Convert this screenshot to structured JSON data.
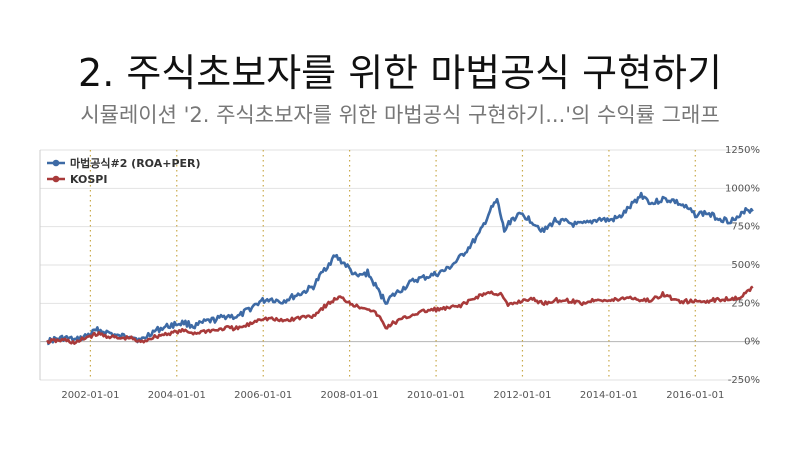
{
  "title": "2. 주식초보자를 위한 마법공식 구현하기",
  "subtitle": "시뮬레이션 '2. 주식초보자를 위한 마법공식 구현하기...'의 수익률 그래프",
  "chart_data": {
    "type": "line",
    "title": "",
    "xlabel": "",
    "ylabel": "",
    "x_ticks": [
      "2002-01-01",
      "2004-01-01",
      "2006-01-01",
      "2008-01-01",
      "2010-01-01",
      "2012-01-01",
      "2014-01-01",
      "2016-01-01"
    ],
    "y_ticks": [
      "-250%",
      "0%",
      "250%",
      "500%",
      "750%",
      "1000%",
      "1250%"
    ],
    "ylim": [
      -250,
      1250
    ],
    "xlim": [
      "2000-11-01",
      "2017-07-01"
    ],
    "y_axis_position": "right",
    "grid": true,
    "legend_position": "top-left",
    "series": [
      {
        "name": "마법공식#2 (ROA+PER)",
        "color": "#3d6aa5",
        "points": [
          [
            "2001-01-01",
            0
          ],
          [
            "2001-03-01",
            15
          ],
          [
            "2001-06-01",
            25
          ],
          [
            "2001-09-01",
            8
          ],
          [
            "2001-12-01",
            40
          ],
          [
            "2002-03-01",
            75
          ],
          [
            "2002-06-01",
            60
          ],
          [
            "2002-09-01",
            30
          ],
          [
            "2002-12-01",
            45
          ],
          [
            "2003-03-01",
            5
          ],
          [
            "2003-06-01",
            60
          ],
          [
            "2003-09-01",
            90
          ],
          [
            "2003-12-01",
            110
          ],
          [
            "2004-03-01",
            125
          ],
          [
            "2004-06-01",
            100
          ],
          [
            "2004-09-01",
            130
          ],
          [
            "2004-12-01",
            145
          ],
          [
            "2005-03-01",
            170
          ],
          [
            "2005-06-01",
            160
          ],
          [
            "2005-09-01",
            210
          ],
          [
            "2005-12-01",
            260
          ],
          [
            "2006-03-01",
            280
          ],
          [
            "2006-06-01",
            260
          ],
          [
            "2006-09-01",
            290
          ],
          [
            "2006-12-01",
            320
          ],
          [
            "2007-03-01",
            360
          ],
          [
            "2007-06-01",
            470
          ],
          [
            "2007-09-01",
            560
          ],
          [
            "2007-12-01",
            500
          ],
          [
            "2008-03-01",
            420
          ],
          [
            "2008-06-01",
            450
          ],
          [
            "2008-09-01",
            330
          ],
          [
            "2008-11-01",
            260
          ],
          [
            "2009-01-01",
            300
          ],
          [
            "2009-04-01",
            350
          ],
          [
            "2009-07-01",
            400
          ],
          [
            "2009-10-01",
            420
          ],
          [
            "2010-01-01",
            440
          ],
          [
            "2010-04-01",
            470
          ],
          [
            "2010-07-01",
            530
          ],
          [
            "2010-10-01",
            610
          ],
          [
            "2011-01-01",
            700
          ],
          [
            "2011-04-01",
            850
          ],
          [
            "2011-06-01",
            920
          ],
          [
            "2011-08-01",
            720
          ],
          [
            "2011-10-01",
            800
          ],
          [
            "2012-01-01",
            830
          ],
          [
            "2012-04-01",
            780
          ],
          [
            "2012-07-01",
            720
          ],
          [
            "2012-10-01",
            790
          ],
          [
            "2013-01-01",
            780
          ],
          [
            "2013-04-01",
            760
          ],
          [
            "2013-07-01",
            770
          ],
          [
            "2013-10-01",
            800
          ],
          [
            "2014-01-01",
            790
          ],
          [
            "2014-04-01",
            810
          ],
          [
            "2014-07-01",
            880
          ],
          [
            "2014-10-01",
            960
          ],
          [
            "2015-01-01",
            900
          ],
          [
            "2015-04-01",
            930
          ],
          [
            "2015-07-01",
            920
          ],
          [
            "2015-10-01",
            880
          ],
          [
            "2016-01-01",
            830
          ],
          [
            "2016-04-01",
            840
          ],
          [
            "2016-07-01",
            810
          ],
          [
            "2016-10-01",
            790
          ],
          [
            "2017-01-01",
            800
          ],
          [
            "2017-03-01",
            870
          ],
          [
            "2017-05-01",
            850
          ]
        ]
      },
      {
        "name": "KOSPI",
        "color": "#a83a3a",
        "points": [
          [
            "2001-01-01",
            0
          ],
          [
            "2001-03-01",
            5
          ],
          [
            "2001-06-01",
            10
          ],
          [
            "2001-09-01",
            -10
          ],
          [
            "2001-12-01",
            30
          ],
          [
            "2002-03-01",
            50
          ],
          [
            "2002-06-01",
            35
          ],
          [
            "2002-09-01",
            20
          ],
          [
            "2002-12-01",
            25
          ],
          [
            "2003-03-01",
            -5
          ],
          [
            "2003-06-01",
            25
          ],
          [
            "2003-09-01",
            45
          ],
          [
            "2003-12-01",
            60
          ],
          [
            "2004-03-01",
            70
          ],
          [
            "2004-06-01",
            55
          ],
          [
            "2004-09-01",
            70
          ],
          [
            "2004-12-01",
            75
          ],
          [
            "2005-03-01",
            90
          ],
          [
            "2005-06-01",
            85
          ],
          [
            "2005-09-01",
            110
          ],
          [
            "2005-12-01",
            150
          ],
          [
            "2006-03-01",
            150
          ],
          [
            "2006-06-01",
            135
          ],
          [
            "2006-09-01",
            145
          ],
          [
            "2006-12-01",
            160
          ],
          [
            "2007-03-01",
            170
          ],
          [
            "2007-06-01",
            230
          ],
          [
            "2007-10-01",
            290
          ],
          [
            "2007-12-01",
            270
          ],
          [
            "2008-03-01",
            230
          ],
          [
            "2008-06-01",
            220
          ],
          [
            "2008-09-01",
            170
          ],
          [
            "2008-11-01",
            90
          ],
          [
            "2009-01-01",
            120
          ],
          [
            "2009-04-01",
            150
          ],
          [
            "2009-07-01",
            180
          ],
          [
            "2009-10-01",
            200
          ],
          [
            "2010-01-01",
            210
          ],
          [
            "2010-04-01",
            215
          ],
          [
            "2010-07-01",
            230
          ],
          [
            "2010-10-01",
            260
          ],
          [
            "2011-01-01",
            300
          ],
          [
            "2011-04-01",
            320
          ],
          [
            "2011-07-01",
            310
          ],
          [
            "2011-09-01",
            235
          ],
          [
            "2011-12-01",
            260
          ],
          [
            "2012-03-01",
            280
          ],
          [
            "2012-07-01",
            250
          ],
          [
            "2012-10-01",
            270
          ],
          [
            "2013-01-01",
            270
          ],
          [
            "2013-06-01",
            250
          ],
          [
            "2013-10-01",
            280
          ],
          [
            "2014-01-01",
            265
          ],
          [
            "2014-07-01",
            290
          ],
          [
            "2014-10-01",
            270
          ],
          [
            "2015-01-01",
            270
          ],
          [
            "2015-04-01",
            310
          ],
          [
            "2015-08-01",
            265
          ],
          [
            "2016-01-01",
            260
          ],
          [
            "2016-06-01",
            270
          ],
          [
            "2016-10-01",
            280
          ],
          [
            "2017-01-01",
            290
          ],
          [
            "2017-03-01",
            310
          ],
          [
            "2017-05-01",
            360
          ]
        ]
      }
    ]
  }
}
